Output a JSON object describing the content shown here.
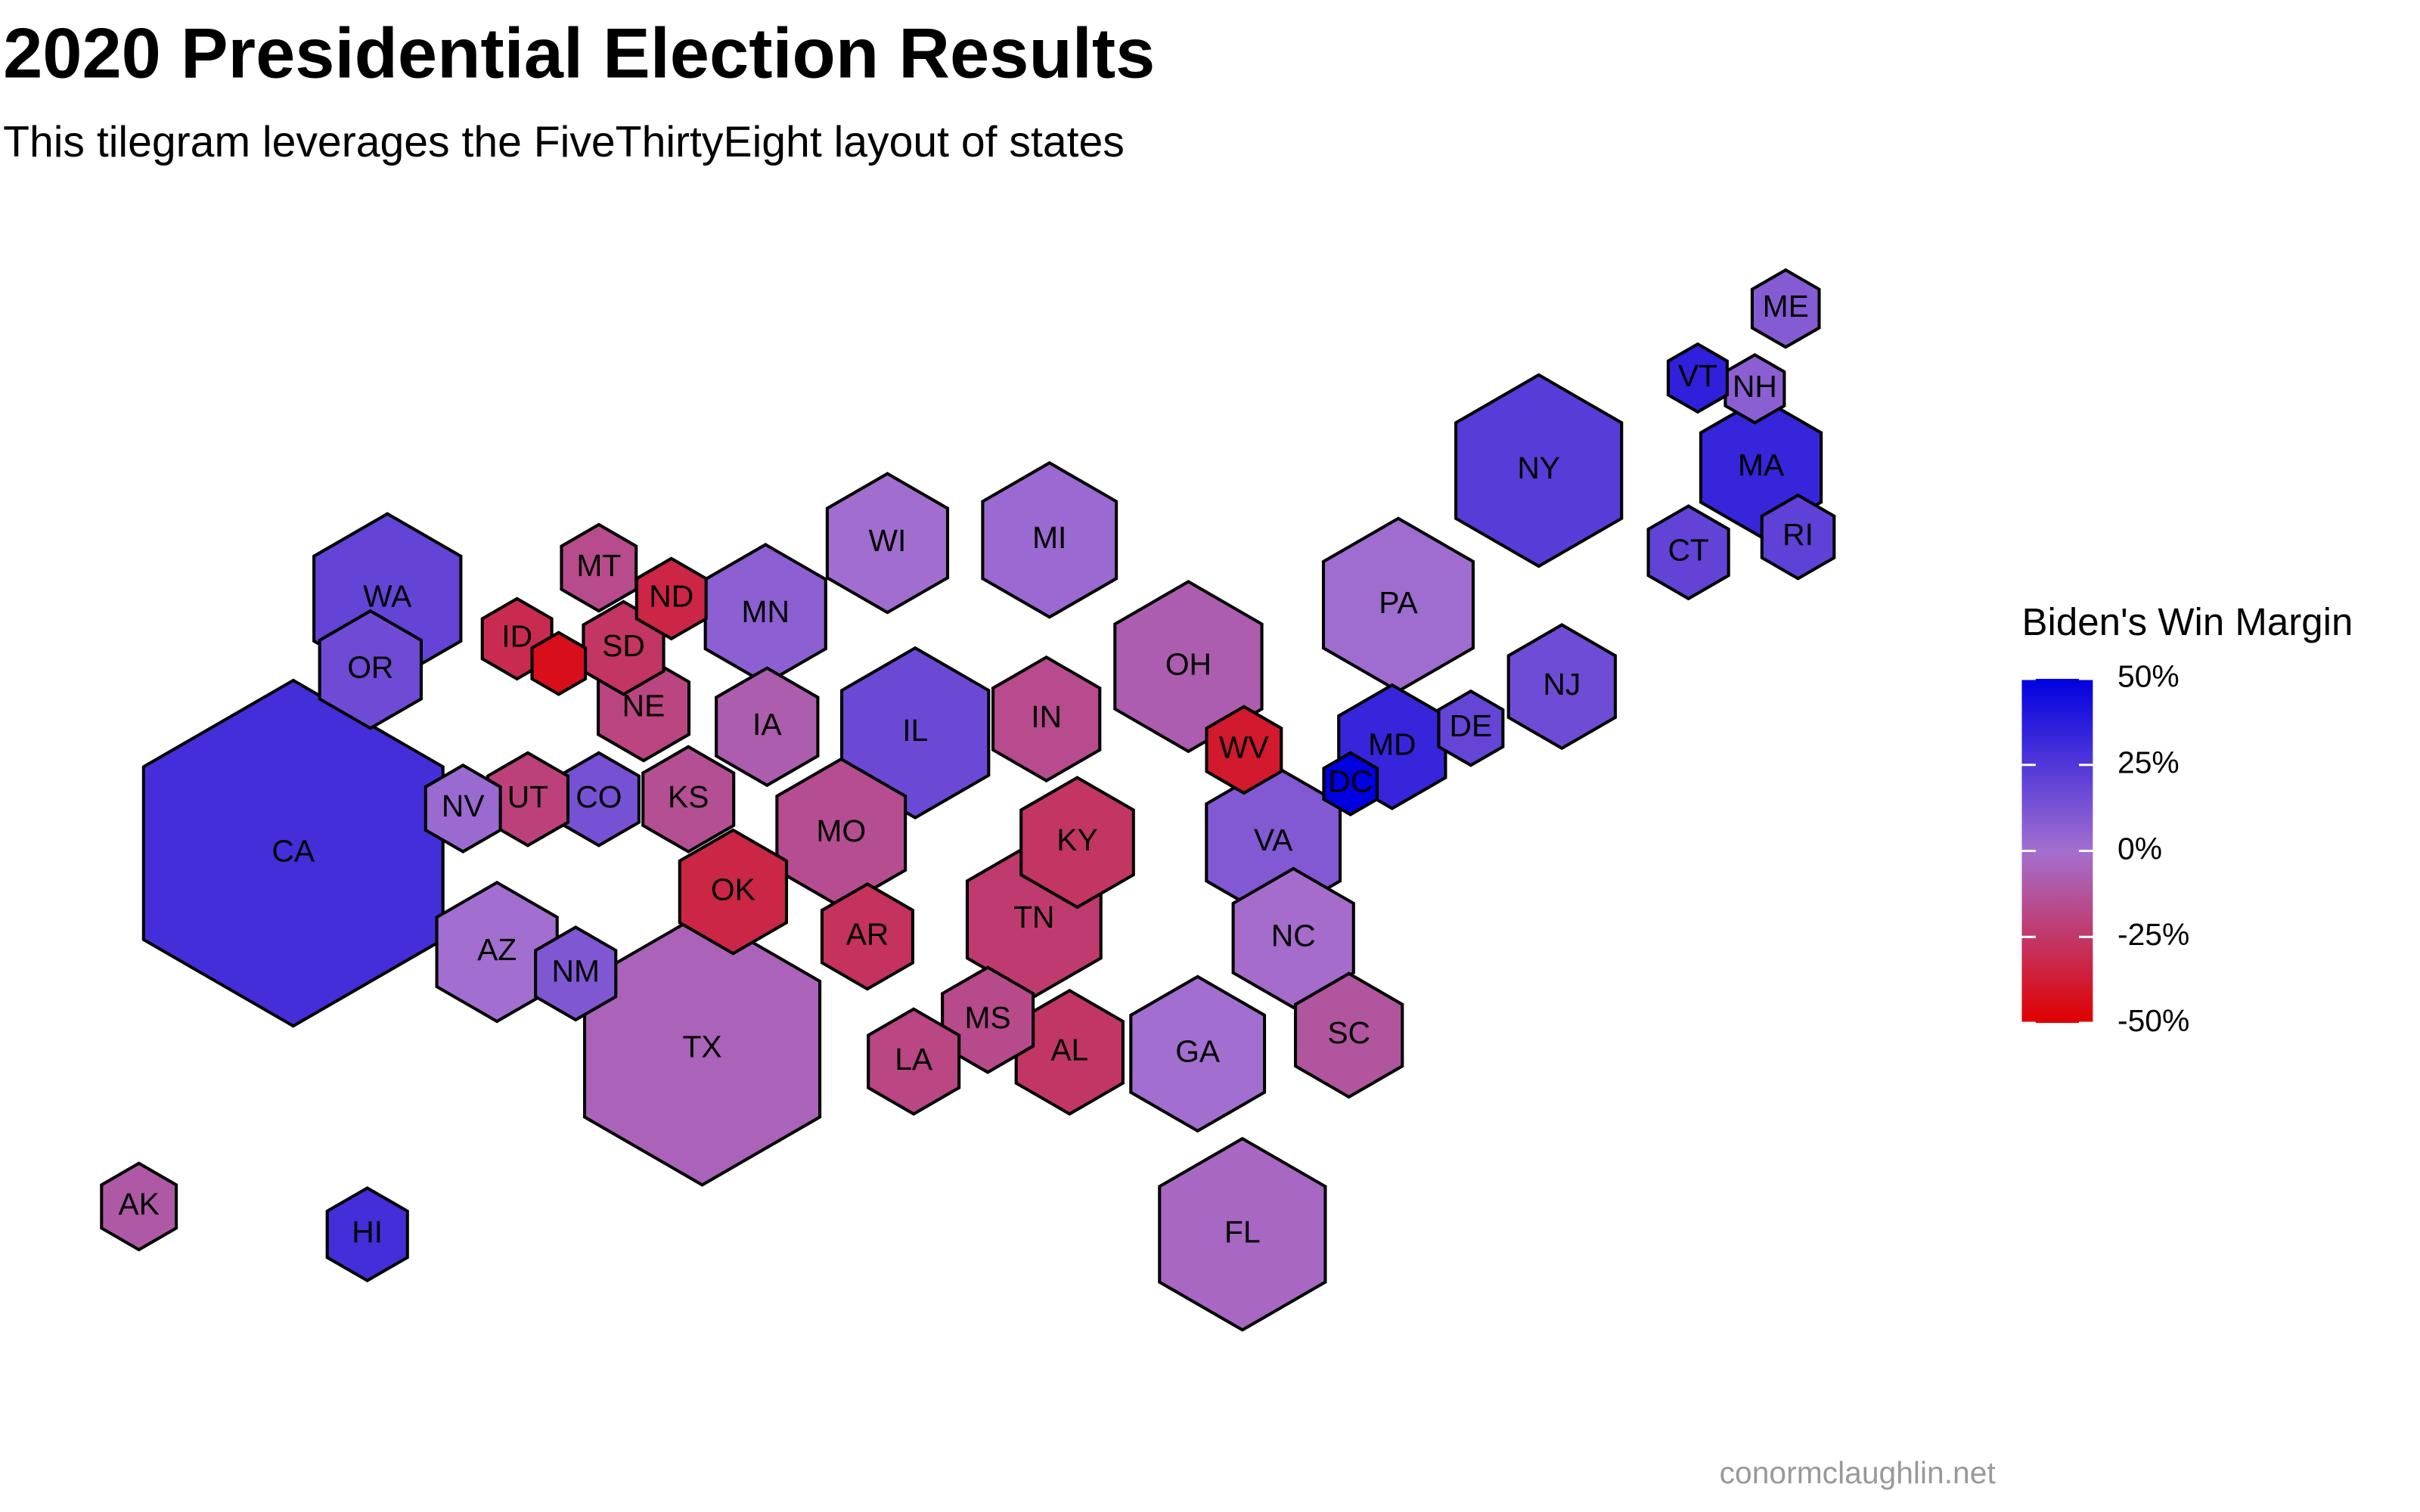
{
  "chart_data": {
    "type": "tilegram",
    "title": "2020 Presidential Election Results",
    "subtitle": "This tilegram leverages the FiveThirtyEight layout of states",
    "legend_title": "Biden's Win Margin",
    "caption": "conormclaughlin.net",
    "color_low": "#e00000",
    "color_mid": "#a36fd0",
    "color_high": "#0000e0",
    "lim": [
      -50,
      50
    ],
    "ticks": [
      {
        "value": 50,
        "label": "50%"
      },
      {
        "value": 25,
        "label": "25%"
      },
      {
        "value": 0,
        "label": "0%"
      },
      {
        "value": -25,
        "label": "-25%"
      },
      {
        "value": -50,
        "label": "-50%"
      }
    ],
    "states": [
      {
        "label": "CA",
        "margin": 29.2
      },
      {
        "label": "TX",
        "margin": -5.6
      },
      {
        "label": "NY",
        "margin": 23.1
      },
      {
        "label": "FL",
        "margin": -3.4
      },
      {
        "label": "PA",
        "margin": 1.2
      },
      {
        "label": "OH",
        "margin": -8.0
      },
      {
        "label": "IL",
        "margin": 17.0
      },
      {
        "label": "WA",
        "margin": 19.2
      },
      {
        "label": "MI",
        "margin": 2.8
      },
      {
        "label": "VA",
        "margin": 10.1
      },
      {
        "label": "GA",
        "margin": 0.2
      },
      {
        "label": "TN",
        "margin": -23.2
      },
      {
        "label": "MO",
        "margin": -15.4
      },
      {
        "label": "NC",
        "margin": -1.3
      },
      {
        "label": "MA",
        "margin": 33.5
      },
      {
        "label": "KY",
        "margin": -25.9
      },
      {
        "label": "WI",
        "margin": 0.6
      },
      {
        "label": "MN",
        "margin": 7.1
      },
      {
        "label": "AZ",
        "margin": 0.3
      },
      {
        "label": "NJ",
        "margin": 15.9
      },
      {
        "label": "OR",
        "margin": 16.1
      },
      {
        "label": "IN",
        "margin": -16.0
      },
      {
        "label": "IA",
        "margin": -8.2
      },
      {
        "label": "OK",
        "margin": -33.1
      },
      {
        "label": "AL",
        "margin": -25.5
      },
      {
        "label": "SC",
        "margin": -11.7
      },
      {
        "label": "MD",
        "margin": 33.2
      },
      {
        "label": "MS",
        "margin": -16.5
      },
      {
        "label": "AR",
        "margin": -27.6
      },
      {
        "label": "LA",
        "margin": -18.6
      },
      {
        "label": "KS",
        "margin": -14.6
      },
      {
        "label": "NE",
        "margin": -19.1
      },
      {
        "label": "CO",
        "margin": 13.5
      },
      {
        "label": "UT",
        "margin": -20.5
      },
      {
        "label": "NM",
        "margin": 10.8
      },
      {
        "label": "SD",
        "margin": -26.2
      },
      {
        "label": "CT",
        "margin": 20.0
      },
      {
        "label": "WV",
        "margin": -38.9
      },
      {
        "label": "NV",
        "margin": 2.4
      },
      {
        "label": "MT",
        "margin": -16.4
      },
      {
        "label": "ND",
        "margin": -33.4
      },
      {
        "label": "ID",
        "margin": -30.8
      },
      {
        "label": "HI",
        "margin": 29.5
      },
      {
        "label": "AK",
        "margin": -10.1
      },
      {
        "label": "RI",
        "margin": 20.8
      },
      {
        "label": "ME",
        "margin": 9.1
      },
      {
        "label": "NH",
        "margin": 7.4
      },
      {
        "label": "DE",
        "margin": 19.0
      },
      {
        "label": "VT",
        "margin": 35.4
      },
      {
        "label": null,
        "margin": -43.4
      },
      {
        "label": "DC",
        "margin": 86.8
      }
    ]
  }
}
